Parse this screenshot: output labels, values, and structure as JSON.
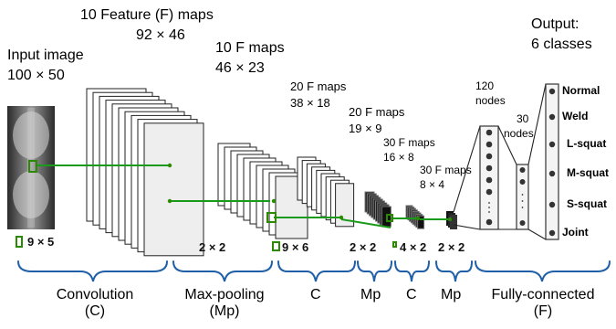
{
  "diagram": {
    "input": {
      "title": "Input image",
      "size": "100 × 50"
    },
    "stages": {
      "conv1": {
        "title": "10 Feature (F) maps",
        "size": "92 × 46"
      },
      "pool1": {
        "title": "10 F maps",
        "size": "46 × 23"
      },
      "conv2": {
        "title": "20 F maps",
        "size": "38 × 18"
      },
      "pool2": {
        "title": "20 F maps",
        "size": "19 × 9"
      },
      "conv3": {
        "title": "30 F maps",
        "size": "16 × 8"
      },
      "pool3": {
        "title": "30 F maps",
        "size": "8 × 4"
      }
    },
    "kernels": {
      "conv1": "9 × 5",
      "pool1": "2 × 2",
      "conv2": "9 × 6",
      "pool2": "2 × 2",
      "conv3": "4 × 2",
      "pool3": "2 × 2"
    },
    "fc": {
      "layer1": {
        "count": "120",
        "unit": "nodes"
      },
      "layer2": {
        "count": "30",
        "unit": "nodes"
      },
      "output_title": "Output:",
      "output_count": "6 classes",
      "classes": [
        "Normal",
        "Weld",
        "L-squat",
        "M-squat",
        "S-squat",
        "Joint"
      ]
    },
    "groups": {
      "conv": {
        "line1": "Convolution",
        "line2": "(C)"
      },
      "maxpool": {
        "line1": "Max-pooling",
        "line2": "(Mp)"
      },
      "c1": "C",
      "mp1": "Mp",
      "c2": "C",
      "mp2": "Mp",
      "fc": {
        "line1": "Fully-connected",
        "line2": "(F)"
      }
    },
    "colors": {
      "connector": "#1a9a1a",
      "kernel": "#2a8a00",
      "brace": "#1f5fa8",
      "map_fill": "#ffffff",
      "map_front": "#eeeeee",
      "map_dark": "#111111"
    }
  }
}
